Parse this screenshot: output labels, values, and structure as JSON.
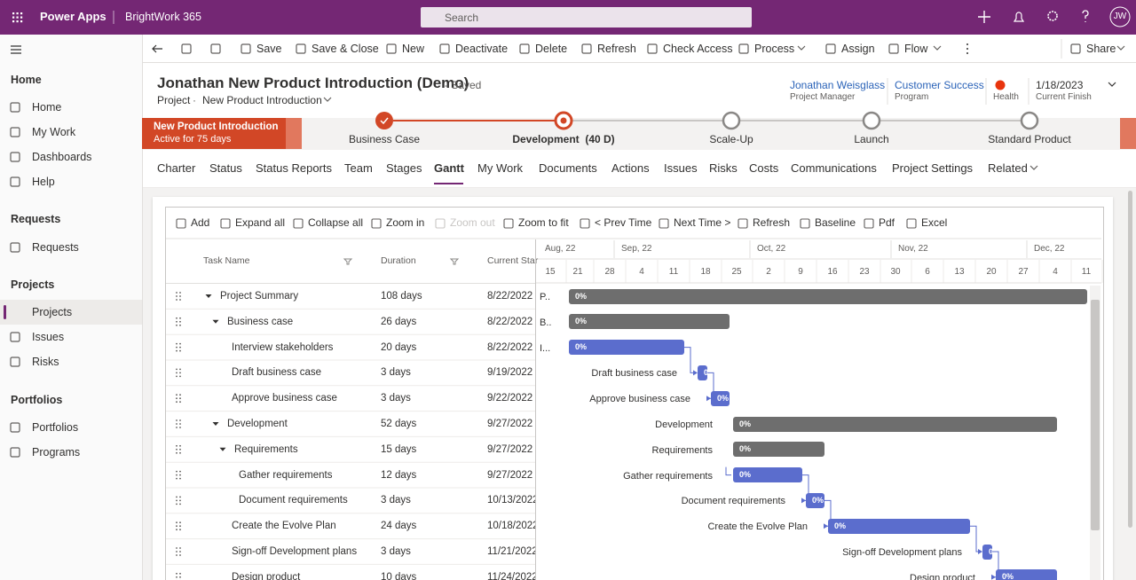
{
  "top_bar": {
    "app": "Power Apps",
    "environment": "BrightWork 365",
    "search": "Search",
    "user_initials": "JW"
  },
  "nav": {
    "groups": [
      {
        "title": "Home",
        "items": [
          "Home",
          "My Work",
          "Dashboards",
          "Help"
        ]
      },
      {
        "title": "Requests",
        "items": [
          "Requests"
        ]
      },
      {
        "title": "Projects",
        "items": [
          "Projects",
          "Issues",
          "Risks"
        ]
      },
      {
        "title": "Portfolios",
        "items": [
          "Portfolios",
          "Programs"
        ]
      }
    ]
  },
  "command_bar": {
    "items": [
      "Save",
      "Save & Close",
      "New",
      "Deactivate",
      "Delete",
      "Refresh",
      "Check Access",
      "Process",
      "Assign",
      "Flow"
    ],
    "share": "Share"
  },
  "record": {
    "title": "Jonathan New Product Introduction (Demo)",
    "status": "- Saved",
    "entity": "Project",
    "separator": "·",
    "form": "New Product Introduction",
    "fields": [
      {
        "value": "Jonathan Weisglass",
        "label": "Project Manager"
      },
      {
        "value": "Customer Success",
        "label": "Program"
      },
      {
        "label": "Health"
      },
      {
        "value": "1/18/2023",
        "label": "Current Finish"
      }
    ]
  },
  "process": {
    "name": "New Product Introduction",
    "active": "Active for 75 days",
    "stages": [
      "Business Case",
      "Development  (40 D)",
      "Scale-Up",
      "Launch",
      "Standard Product"
    ]
  },
  "tabs": [
    "Charter",
    "Status",
    "Status Reports",
    "Team",
    "Stages",
    "Gantt",
    "My Work",
    "Documents",
    "Actions",
    "Issues",
    "Risks",
    "Costs",
    "Communications",
    "Project Settings",
    "Related"
  ],
  "gantt": {
    "toolbar": [
      "Add",
      "Expand all",
      "Collapse all",
      "Zoom in",
      "Zoom out",
      "Zoom to fit",
      "< Prev Time",
      "Next Time >",
      "Refresh",
      "Baseline",
      "Pdf",
      "Excel"
    ],
    "columns": [
      "Task Name",
      "Duration",
      "Current Star"
    ],
    "months": [
      "Aug, 22",
      "Sep, 22",
      "Oct, 22",
      "Nov, 22",
      "Dec, 22"
    ],
    "days": [
      15,
      21,
      28,
      4,
      11,
      18,
      25,
      2,
      9,
      16,
      23,
      30,
      6,
      13,
      20,
      27,
      4,
      11
    ],
    "rows": [
      {
        "name": "Project Summary",
        "duration": "108 days",
        "start": "8/22/2022",
        "percent": "0%"
      },
      {
        "name": "Business case",
        "duration": "26 days",
        "start": "8/22/2022",
        "percent": "0%"
      },
      {
        "name": "Interview stakeholders",
        "duration": "20 days",
        "start": "8/22/2022",
        "percent": "0%"
      },
      {
        "name": "Draft business case",
        "duration": "3 days",
        "start": "9/19/2022",
        "percent": "0%"
      },
      {
        "name": "Approve business case",
        "duration": "3 days",
        "start": "9/22/2022",
        "percent": "0%"
      },
      {
        "name": "Development",
        "duration": "52 days",
        "start": "9/27/2022",
        "percent": "0%"
      },
      {
        "name": "Requirements",
        "duration": "15 days",
        "start": "9/27/2022",
        "percent": "0%"
      },
      {
        "name": "Gather requirements",
        "duration": "12 days",
        "start": "9/27/2022",
        "percent": "0%"
      },
      {
        "name": "Document requirements",
        "duration": "3 days",
        "start": "10/13/2022",
        "percent": "0%"
      },
      {
        "name": "Create the Evolve Plan",
        "duration": "24 days",
        "start": "10/18/2022",
        "percent": "0%"
      },
      {
        "name": "Sign-off Development plans",
        "duration": "3 days",
        "start": "11/21/2022",
        "percent": "0%"
      },
      {
        "name": "Design product",
        "duration": "10 days",
        "start": "11/24/2022",
        "percent": "0%"
      }
    ],
    "bar_labels": [
      "P..",
      "B..",
      "I..."
    ]
  }
}
